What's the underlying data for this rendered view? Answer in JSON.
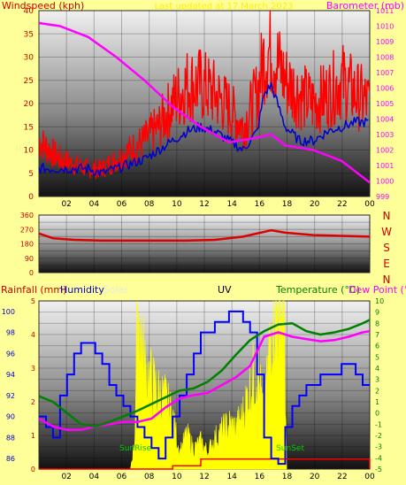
{
  "colors": {
    "background": "#ffff99",
    "windspeed": "#ff0000",
    "windspeed_avg": "#0000cc",
    "barometer": "#ff00ff",
    "direction": "#dd0000",
    "humidity": "#0000ff",
    "solar": "#ffff00",
    "uv": "#000000",
    "temperature": "#008000",
    "dewpoint": "#ff00ff",
    "rainfall": "#ff0000",
    "sunrise": "#00cc00",
    "title": "#ffee00"
  },
  "chart_data": [
    {
      "type": "line",
      "title": "Last updated at 17 March 2023",
      "ylabel": "Windspeed (kph)",
      "y2label": "Barometer (mb)",
      "x_ticks": [
        "02",
        "04",
        "06",
        "08",
        "10",
        "12",
        "14",
        "16",
        "18",
        "20",
        "22",
        "00"
      ],
      "x_range": [
        0.5,
        24
      ],
      "ylim": [
        0,
        40
      ],
      "y_ticks": [
        0,
        5,
        10,
        15,
        20,
        25,
        30,
        35,
        40
      ],
      "y2lim": [
        999,
        1011
      ],
      "y2_ticks": [
        999,
        1000,
        1001,
        1002,
        1003,
        1004,
        1005,
        1006,
        1007,
        1008,
        1009,
        1010,
        1011
      ],
      "series": [
        {
          "key": "gust",
          "x": [
            0.5,
            2,
            3,
            4,
            5,
            6,
            7,
            8,
            9,
            10,
            11,
            12,
            13,
            14,
            15,
            16,
            16.5,
            17,
            18,
            19,
            20,
            21,
            22,
            23,
            24
          ],
          "y": [
            12,
            8,
            7,
            6,
            6,
            8,
            10,
            12,
            15,
            20,
            24,
            24,
            22,
            19,
            15,
            22,
            30,
            32,
            25,
            22,
            20,
            22,
            25,
            22,
            20
          ]
        },
        {
          "key": "average",
          "x": [
            0.5,
            2,
            3,
            4,
            5,
            6,
            7,
            8,
            9,
            10,
            11,
            12,
            13,
            14,
            15,
            16,
            16.5,
            17,
            18,
            19,
            20,
            21,
            22,
            23,
            24
          ],
          "y": [
            6,
            6,
            6,
            6,
            5,
            6,
            7,
            8,
            10,
            12,
            14,
            15,
            14,
            12,
            10,
            14,
            22,
            24,
            15,
            12,
            12,
            14,
            15,
            16,
            16
          ]
        },
        {
          "key": "pressure",
          "x": [
            0.5,
            2,
            4,
            6,
            8,
            10,
            12,
            14,
            16,
            17,
            18,
            20,
            22,
            24
          ],
          "y": [
            1010.2,
            1010,
            1009.3,
            1008,
            1006.5,
            1004.8,
            1003.5,
            1002.5,
            1002.8,
            1003,
            1002.3,
            1002,
            1001.3,
            999.9
          ]
        }
      ]
    },
    {
      "type": "line",
      "title": "",
      "right_labels": [
        "N",
        "W",
        "S",
        "E",
        "N"
      ],
      "ylim": [
        0,
        360
      ],
      "y_ticks": [
        0,
        45,
        90,
        135,
        180,
        225,
        270,
        315,
        360
      ],
      "y_tick_labels": [
        "0",
        "",
        "90",
        "",
        "180",
        "",
        "270",
        "",
        "360"
      ],
      "x_range": [
        0.5,
        24
      ],
      "series": [
        {
          "key": "direction",
          "x": [
            0.5,
            1.5,
            3,
            5,
            7,
            9,
            11,
            13,
            15,
            17,
            18,
            20,
            22,
            24
          ],
          "y": [
            245,
            215,
            205,
            200,
            200,
            200,
            200,
            205,
            225,
            265,
            250,
            235,
            230,
            225
          ]
        }
      ]
    },
    {
      "type": "line",
      "labels": {
        "rainfall": "Rainfall (mm)",
        "humidity": "Humidity",
        "solar": "Solar",
        "uv": "UV",
        "temperature": "Temperature (°C)",
        "dewpoint": "Dew Point (°C)",
        "sunrise": "SunRise",
        "sunset": "SunSet"
      },
      "x_ticks": [
        "02",
        "04",
        "06",
        "08",
        "10",
        "12",
        "14",
        "16",
        "18",
        "20",
        "22",
        "00"
      ],
      "x_range": [
        0.5,
        24
      ],
      "humidity_ylim": [
        85,
        101
      ],
      "humidity_ticks": [
        86,
        88,
        90,
        92,
        94,
        96,
        98,
        100
      ],
      "rain_ylim": [
        0,
        5
      ],
      "rain_ticks": [
        0,
        1,
        2,
        3,
        4,
        5
      ],
      "temp_ylim": [
        -5,
        10
      ],
      "temp_ticks": [
        -5,
        -4,
        -3,
        -2,
        -1,
        0,
        1,
        2,
        3,
        4,
        5,
        6,
        7,
        8,
        9,
        10
      ],
      "sunrise_x": 7.1,
      "sunset_x": 18.1,
      "series": [
        {
          "key": "humidity",
          "x": [
            0.5,
            1,
            1.5,
            2,
            2.5,
            3,
            3.5,
            4,
            4.5,
            5,
            5.5,
            6,
            6.5,
            7,
            7.5,
            8,
            8.5,
            9,
            9.5,
            10,
            10.5,
            11,
            11.5,
            12,
            12.5,
            13,
            13.5,
            14,
            14.5,
            15,
            15.5,
            16,
            16.5,
            17,
            17.5,
            18,
            18.5,
            19,
            19.5,
            20,
            20.5,
            21,
            21.5,
            22,
            22.5,
            23,
            23.5,
            24
          ],
          "y": [
            90,
            89,
            88,
            92,
            94,
            96,
            97,
            97,
            96,
            95,
            93,
            92,
            91,
            90,
            89,
            88,
            87,
            86,
            88,
            90,
            92,
            94,
            96,
            98,
            98,
            99,
            99,
            100,
            100,
            99,
            98,
            94,
            88,
            86,
            85.5,
            89,
            91,
            92,
            93,
            93,
            94,
            94,
            94,
            95,
            95,
            94,
            93,
            93
          ]
        },
        {
          "key": "temperature",
          "x": [
            0.5,
            1.5,
            2.5,
            3.5,
            4.5,
            5.5,
            6.5,
            7.5,
            8.5,
            9.5,
            10.5,
            11.5,
            12.5,
            13.5,
            14.5,
            15.5,
            16.5,
            17.5,
            18.5,
            19.5,
            20.5,
            21.5,
            22.5,
            23.5,
            24
          ],
          "y": [
            1.5,
            1.0,
            0.0,
            -1.0,
            -1.2,
            -0.8,
            -0.3,
            0.2,
            0.8,
            1.4,
            2.0,
            2.2,
            2.8,
            3.8,
            5.2,
            6.5,
            7.3,
            7.9,
            8.0,
            7.3,
            7.0,
            7.2,
            7.5,
            8.0,
            8.3
          ]
        },
        {
          "key": "dewpoint",
          "x": [
            0.5,
            1.5,
            2.5,
            3.5,
            4.5,
            5.5,
            6.5,
            7.5,
            8.5,
            9.5,
            10.5,
            11.5,
            12.5,
            13.5,
            14.5,
            15.5,
            16.5,
            17.5,
            18.5,
            19.5,
            20.5,
            21.5,
            22.5,
            23.5,
            24
          ],
          "y": [
            -0.5,
            -1.2,
            -1.5,
            -1.5,
            -1.2,
            -1.0,
            -0.8,
            -0.8,
            -0.5,
            0.5,
            1.3,
            1.6,
            1.8,
            2.5,
            3.2,
            4.2,
            6.8,
            7.2,
            6.8,
            6.6,
            6.4,
            6.5,
            6.8,
            7.2,
            7.3
          ]
        },
        {
          "key": "rainfall",
          "x": [
            0.5,
            10,
            12,
            24
          ],
          "y": [
            0,
            0.1,
            0.3,
            0.3
          ]
        },
        {
          "key": "solar",
          "x": [
            7,
            7.3,
            7.5,
            8,
            8.5,
            9,
            9.5,
            10,
            10.5,
            11,
            11.5,
            12,
            12.5,
            13,
            13.5,
            14,
            14.5,
            15,
            15.5,
            16,
            16.5,
            17,
            17.3,
            17.6,
            17.9,
            18.1
          ],
          "y": [
            0,
            0.8,
            4.8,
            3.0,
            2.5,
            2.2,
            2.0,
            1.5,
            0.5,
            1.0,
            0.6,
            0.8,
            0.5,
            0.9,
            1.1,
            1.3,
            1.2,
            1.6,
            2.4,
            3.0,
            1.4,
            4.2,
            5.0,
            4.5,
            5.0,
            0
          ]
        }
      ]
    }
  ]
}
